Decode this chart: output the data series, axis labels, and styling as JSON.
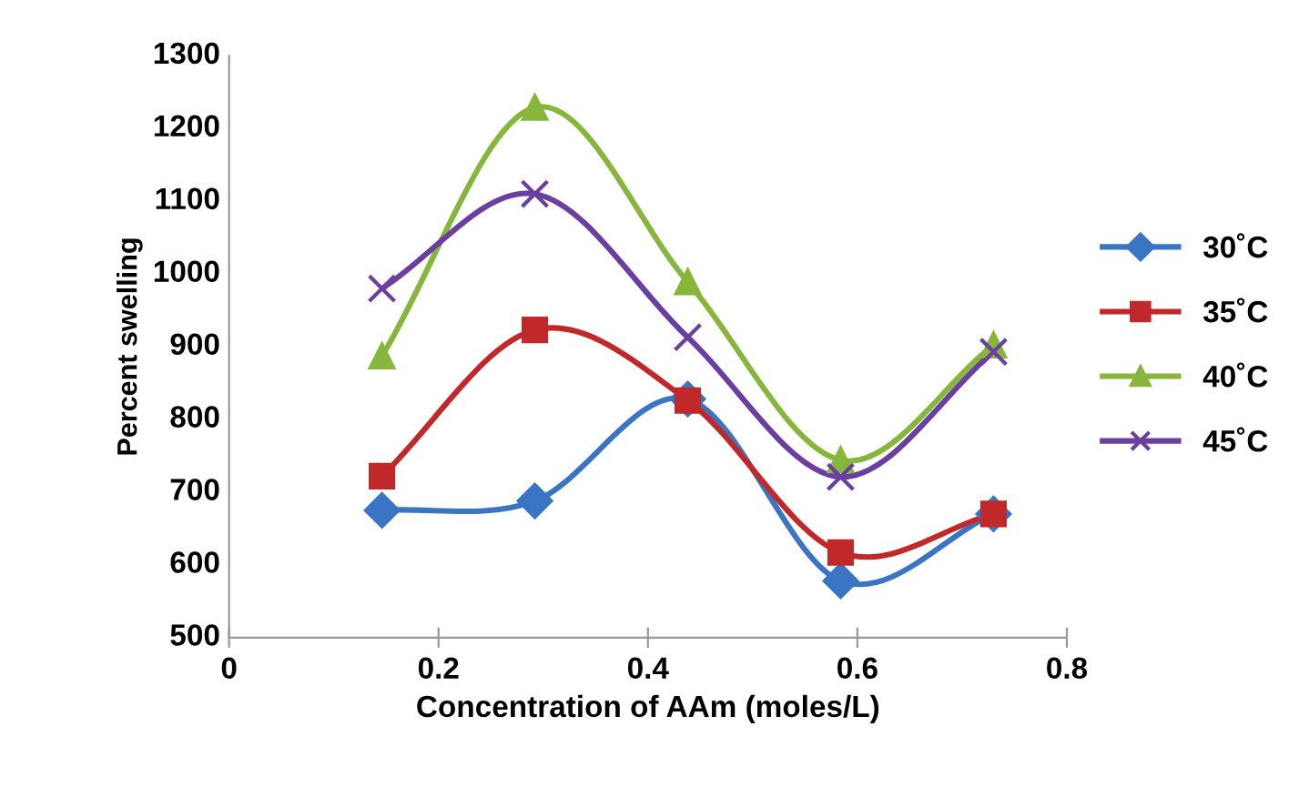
{
  "chart_data": {
    "type": "line",
    "xlabel": "Concentration of AAm (moles/L)",
    "ylabel": "Percent swelling",
    "x": [
      0.146,
      0.292,
      0.438,
      0.584,
      0.73
    ],
    "series": [
      {
        "name": "30˚C",
        "color": "#3a75c4",
        "marker": "diamond",
        "values": [
          675,
          688,
          828,
          578,
          670
        ]
      },
      {
        "name": "35˚C",
        "color": "#c0282a",
        "marker": "square",
        "values": [
          722,
          923,
          826,
          617,
          670
        ]
      },
      {
        "name": "40˚C",
        "color": "#86b63c",
        "marker": "triangle",
        "values": [
          887,
          1229,
          989,
          744,
          902
        ]
      },
      {
        "name": "45˚C",
        "color": "#6a3fa0",
        "marker": "cross",
        "values": [
          980,
          1110,
          913,
          721,
          893
        ]
      }
    ],
    "xlim": [
      0,
      0.8
    ],
    "xticks": [
      0,
      0.2,
      0.4,
      0.6,
      0.8
    ],
    "ylim": [
      500,
      1300
    ],
    "yticks": [
      500,
      600,
      700,
      800,
      900,
      1000,
      1100,
      1200,
      1300
    ],
    "grid": false,
    "legend": "right"
  }
}
